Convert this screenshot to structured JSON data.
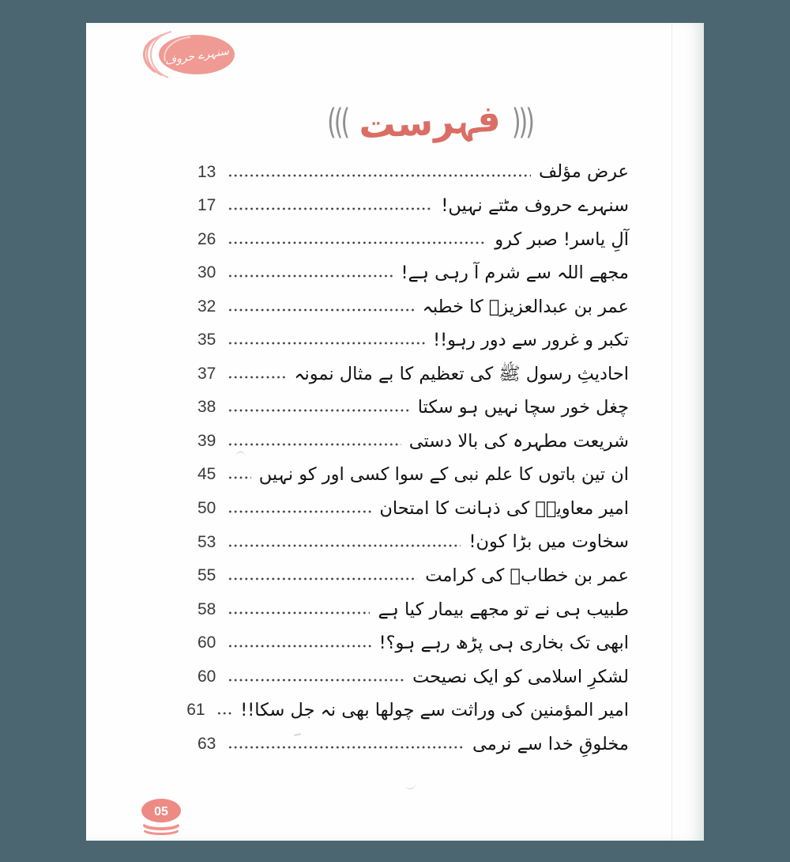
{
  "logo": {
    "title": "سنہرے حروف"
  },
  "heading": {
    "text": "فہرست",
    "left_ornament": "(((",
    "right_ornament": ")))"
  },
  "toc": {
    "entries": [
      {
        "title": "عرض مؤلف",
        "page": "13"
      },
      {
        "title": "سنہرے حروف مٹتے نہیں!",
        "page": "17"
      },
      {
        "title": "آلِ یاسر! صبر کرو",
        "page": "26"
      },
      {
        "title": "مجھے اللہ سے شرم آ رہی ہے!",
        "page": "30"
      },
      {
        "title": "عمر بن عبدالعزیزؒ کا خطبہ",
        "page": "32"
      },
      {
        "title": "تکبر و غرور سے دور رہو!!",
        "page": "35"
      },
      {
        "title": "احادیثِ رسول ﷺ کی تعظیم کا بے مثال نمونہ",
        "page": "37"
      },
      {
        "title": "چغل خور سچا نہیں ہو سکتا",
        "page": "38"
      },
      {
        "title": "شریعت مطہرہ کی بالا دستی",
        "page": "39"
      },
      {
        "title": "ان تین باتوں کا علم نبی کے سوا کسی اور کو نہیں",
        "page": "45"
      },
      {
        "title": "امیر معاویہؓ کی ذہانت کا امتحان",
        "page": "50"
      },
      {
        "title": "سخاوت میں بڑا کون!",
        "page": "53"
      },
      {
        "title": "عمر بن خطابؓ کی کرامت",
        "page": "55"
      },
      {
        "title": "طبیب ہی نے تو مجھے بیمار کیا ہے",
        "page": "58"
      },
      {
        "title": "ابھی تک بخاری ہی پڑھ رہے ہو؟!",
        "page": "60"
      },
      {
        "title": "لشکرِ اسلامی کو ایک نصیحت",
        "page": "60"
      },
      {
        "title": "امیر المؤمنین کی وراثت سے چولھا بھی نہ جل سکا!!",
        "page": "61"
      },
      {
        "title": "مخلوقِ خدا سے نرمی",
        "page": "63"
      }
    ]
  },
  "page_badge": "05",
  "colors": {
    "surround_slate": "#4b6670",
    "logo_salmon": "#f09a94",
    "heading_red": "#da6e64",
    "ornament_gray": "#8f8f8f",
    "text_dark": "#131313",
    "badge_pink": "#ee8a84"
  }
}
